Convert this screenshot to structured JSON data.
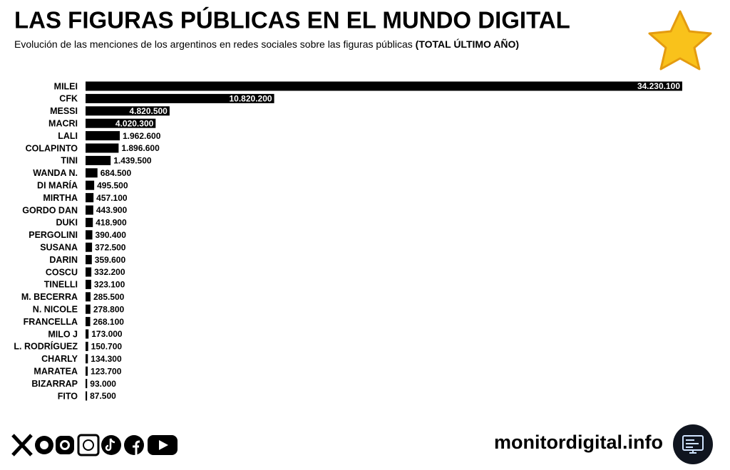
{
  "chart_data": {
    "type": "bar",
    "orientation": "horizontal",
    "title": "LAS FIGURAS PÚBLICAS EN EL MUNDO DIGITAL",
    "subtitle": "Evolución de las menciones de los argentinos en redes sociales sobre las figuras públicas",
    "subtitle_note": "(TOTAL ÚLTIMO AÑO)",
    "color": "#000000",
    "categories": [
      "MILEI",
      "CFK",
      "MESSI",
      "MACRI",
      "LALI",
      "COLAPINTO",
      "TINI",
      "WANDA N.",
      "DI MARÍA",
      "MIRTHA",
      "GORDO DAN",
      "DUKI",
      "PERGOLINI",
      "SUSANA",
      "DARIN",
      "COSCU",
      "TINELLI",
      "M. BECERRA",
      "N. NICOLE",
      "FRANCELLA",
      "MILO J",
      "L. RODRÍGUEZ",
      "CHARLY",
      "MARATEA",
      "BIZARRAP",
      "FITO"
    ],
    "values": [
      34230100,
      10820200,
      4820500,
      4020300,
      1962600,
      1896600,
      1439500,
      684500,
      495500,
      457100,
      443900,
      418900,
      390400,
      372500,
      359600,
      332200,
      323100,
      285500,
      278800,
      268100,
      173000,
      150700,
      134300,
      123700,
      93000,
      87500
    ],
    "value_labels": [
      "34.230.100",
      "10.820.200",
      "4.820.500",
      "4.020.300",
      "1.962.600",
      "1.896.600",
      "1.439.500",
      "684.500",
      "495.500",
      "457.100",
      "443.900",
      "418.900",
      "390.400",
      "372.500",
      "359.600",
      "332.200",
      "323.100",
      "285.500",
      "278.800",
      "268.100",
      "173.000",
      "150.700",
      "134.300",
      "123.700",
      "93.000",
      "87.500"
    ],
    "footer": "monitordigital.info"
  }
}
